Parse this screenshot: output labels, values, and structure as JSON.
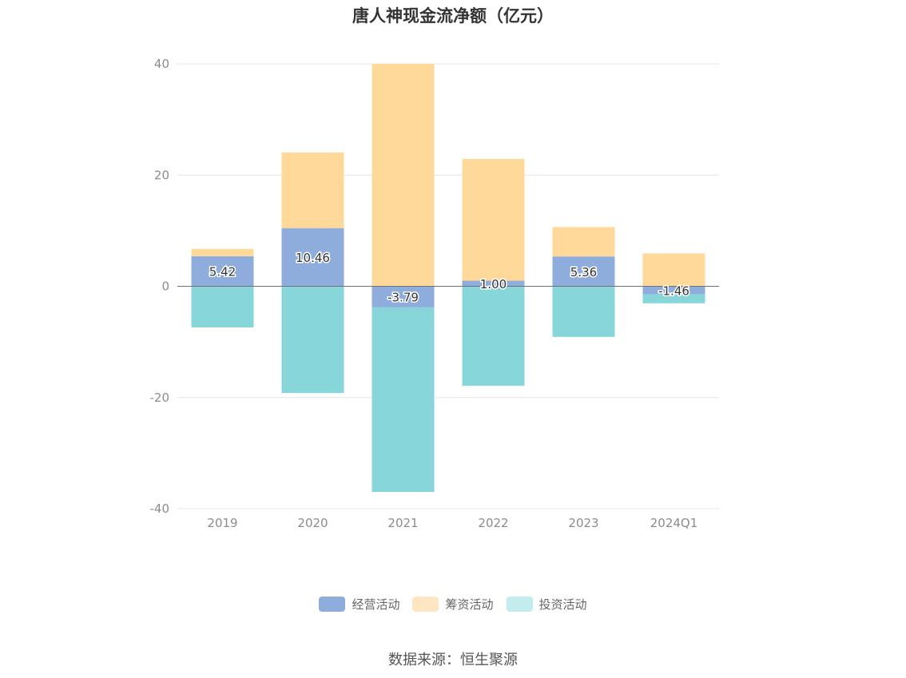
{
  "chart_data": {
    "type": "bar",
    "stacked": true,
    "title": "唐人神现金流净额（亿元）",
    "categories": [
      "2019",
      "2020",
      "2021",
      "2022",
      "2023",
      "2024Q1"
    ],
    "series": [
      {
        "name": "经营活动",
        "color": "#8eaddc",
        "values": [
          5.42,
          10.46,
          -3.79,
          1.0,
          5.36,
          -1.46
        ],
        "labels": [
          "5.42",
          "10.46",
          "-3.79",
          "1.00",
          "5.36",
          "-1.46"
        ]
      },
      {
        "name": "筹资活动",
        "color": "#ffd99a",
        "values": [
          1.3,
          13.6,
          40.0,
          21.9,
          5.3,
          5.9
        ]
      },
      {
        "name": "投资活动",
        "color": "#87d6da",
        "values": [
          -7.4,
          -19.2,
          -33.2,
          -17.9,
          -9.1,
          -1.6
        ]
      }
    ],
    "legend_colors": [
      "#8eaddc",
      "#ffe6c3",
      "#c2ecee"
    ],
    "ylim": [
      -40,
      40
    ],
    "yticks": [
      40,
      20,
      0,
      -20,
      -40
    ],
    "ytick_labels": [
      "40",
      "20",
      "0",
      "-20",
      "-40"
    ],
    "grid": true,
    "legend_position": "bottom"
  },
  "source": "数据来源：恒生聚源"
}
